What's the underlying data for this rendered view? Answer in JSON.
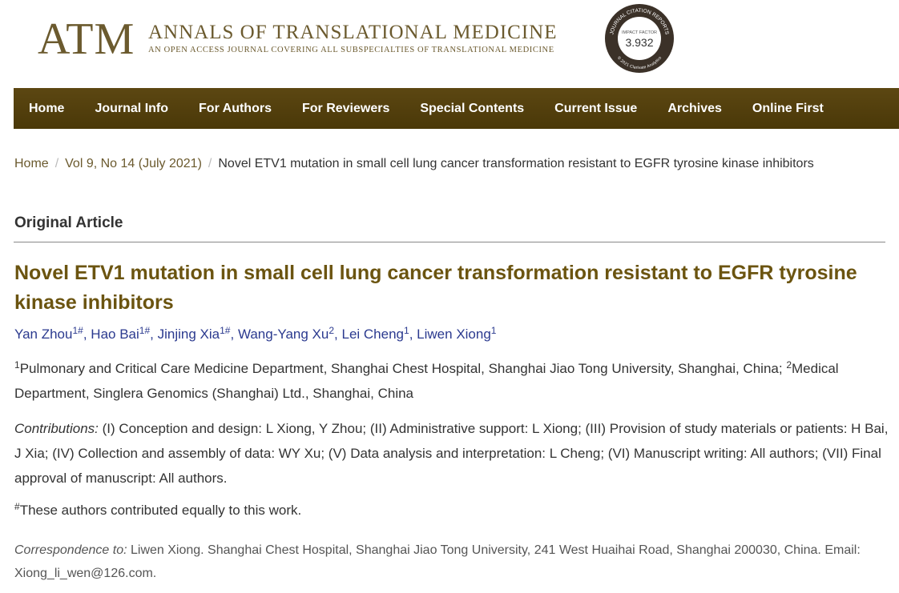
{
  "header": {
    "logo": "ATM",
    "journal_name": "ANNALS OF TRANSLATIONAL MEDICINE",
    "tagline": "An open access journal covering all subspecialties of translational medicine",
    "badge": {
      "arc_top": "JOURNAL CITATION REPORTS",
      "label": "IMPACT FACTOR",
      "value": "3.932",
      "arc_bottom": "© 2021 Clarivate Analytics"
    }
  },
  "nav": [
    "Home",
    "Journal Info",
    "For Authors",
    "For Reviewers",
    "Special Contents",
    "Current Issue",
    "Archives",
    "Online First"
  ],
  "breadcrumb": {
    "separator": "/",
    "items": [
      "Home",
      "Vol 9, No 14 (July 2021)",
      "Novel ETV1 mutation in small cell lung cancer transformation resistant to EGFR tyrosine kinase inhibitors"
    ]
  },
  "article": {
    "section": "Original Article",
    "title": "Novel ETV1 mutation in small cell lung cancer transformation resistant to EGFR tyrosine kinase inhibitors",
    "authors": {
      "separator": ",",
      "list": [
        {
          "name": "Yan Zhou",
          "sup": "1#"
        },
        {
          "name": "Hao Bai",
          "sup": "1#"
        },
        {
          "name": "Jinjing Xia",
          "sup": "1#"
        },
        {
          "name": "Wang-Yang Xu",
          "sup": "2"
        },
        {
          "name": "Lei Cheng",
          "sup": "1"
        },
        {
          "name": "Liwen Xiong",
          "sup": "1"
        }
      ]
    },
    "affiliations": [
      {
        "sup": "1",
        "text": "Pulmonary and Critical Care Medicine Department, Shanghai Chest Hospital, Shanghai Jiao Tong University, Shanghai, China;"
      },
      {
        "sup": "2",
        "text": "Medical Department, Singlera Genomics (Shanghai) Ltd., Shanghai, China"
      }
    ],
    "contributions_label": "Contributions:",
    "contributions": "(I) Conception and design: L Xiong, Y Zhou; (II) Administrative support: L Xiong; (III) Provision of study materials or patients: H Bai, J Xia; (IV) Collection and assembly of data: WY Xu; (V) Data analysis and interpretation: L Cheng; (VI) Manuscript writing: All authors; (VII) Final approval of manuscript: All authors.",
    "equal_note_sup": "#",
    "equal_note": "These authors contributed equally to this work.",
    "correspondence_label": "Correspondence to:",
    "correspondence": "Liwen Xiong. Shanghai Chest Hospital, Shanghai Jiao Tong University, 241 West Huaihai Road, Shanghai 200030, China. Email: Xiong_li_wen@126.com."
  }
}
